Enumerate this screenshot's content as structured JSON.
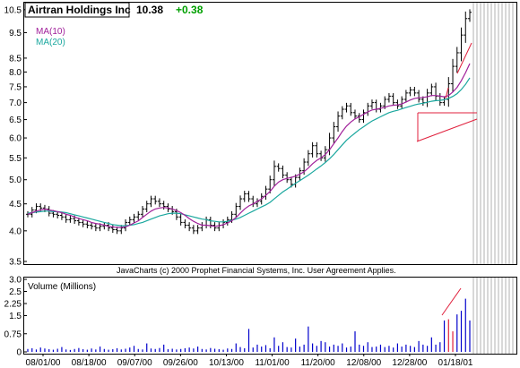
{
  "header": {
    "title": "Airtran Holdings Inc",
    "last": "10.38",
    "change": "+0.38",
    "change_color": "#00a000"
  },
  "legend": {
    "ma10": "MA(10)",
    "ma20": "MA(20)",
    "ma10_color": "#a0209a",
    "ma20_color": "#1aa79e"
  },
  "copyright": "JavaCharts (c) 2000 Prophet Financial Systems, Inc.  User Agreement Applies.",
  "volume_label": "Volume (Millions)",
  "colors": {
    "bars": "#000000",
    "volume": "#0000cc",
    "annotation": "#e0203c",
    "tick_text": "#cc0000"
  },
  "chart_data": [
    {
      "type": "ohlc",
      "title": "Airtran Holdings Inc",
      "price_ticks": [
        "10.5",
        "9.5",
        "8.5",
        "8.0",
        "7.5",
        "7.0",
        "6.5",
        "6.0",
        "5.5",
        "5.0",
        "4.5",
        "4.0",
        "3.5"
      ],
      "date_labels": [
        "08/01/00",
        "08/18/00",
        "09/07/00",
        "09/26/00",
        "10/13/00",
        "11/01/00",
        "11/20/00",
        "12/08/00",
        "12/28/00",
        "01/18/01"
      ],
      "ylim": [
        3.5,
        10.7
      ],
      "scale": "log",
      "close": [
        4.3,
        4.38,
        4.45,
        4.42,
        4.4,
        4.32,
        4.3,
        4.28,
        4.25,
        4.2,
        4.22,
        4.18,
        4.15,
        4.12,
        4.1,
        4.08,
        4.05,
        4.08,
        4.1,
        4.05,
        4.02,
        4.0,
        4.05,
        4.15,
        4.2,
        4.25,
        4.3,
        4.4,
        4.5,
        4.6,
        4.55,
        4.5,
        4.45,
        4.4,
        4.35,
        4.25,
        4.15,
        4.1,
        4.05,
        4.0,
        4.05,
        4.1,
        4.2,
        4.1,
        4.05,
        4.1,
        4.15,
        4.2,
        4.3,
        4.45,
        4.6,
        4.7,
        4.6,
        4.5,
        4.55,
        4.65,
        4.8,
        5.0,
        5.3,
        5.25,
        5.1,
        5.0,
        4.9,
        5.05,
        5.2,
        5.4,
        5.6,
        5.8,
        5.6,
        5.5,
        5.7,
        6.0,
        6.3,
        6.6,
        6.8,
        6.9,
        6.7,
        6.6,
        6.5,
        6.7,
        6.9,
        7.0,
        6.8,
        6.9,
        7.1,
        7.2,
        7.0,
        6.9,
        7.1,
        7.3,
        7.4,
        7.3,
        7.1,
        7.0,
        7.3,
        7.5,
        7.2,
        7.0,
        7.1,
        7.6,
        8.2,
        8.7,
        9.4,
        10.1,
        10.38
      ],
      "ma10": [
        4.3,
        4.33,
        4.36,
        4.38,
        4.4,
        4.38,
        4.37,
        4.35,
        4.33,
        4.3,
        4.28,
        4.25,
        4.22,
        4.2,
        4.18,
        4.15,
        4.13,
        4.12,
        4.1,
        4.08,
        4.07,
        4.06,
        4.06,
        4.07,
        4.1,
        4.14,
        4.18,
        4.24,
        4.3,
        4.36,
        4.4,
        4.42,
        4.43,
        4.42,
        4.4,
        4.37,
        4.33,
        4.28,
        4.22,
        4.17,
        4.13,
        4.1,
        4.1,
        4.09,
        4.08,
        4.09,
        4.11,
        4.14,
        4.18,
        4.24,
        4.32,
        4.4,
        4.46,
        4.5,
        4.55,
        4.6,
        4.67,
        4.75,
        4.86,
        4.95,
        5.0,
        5.03,
        5.05,
        5.08,
        5.12,
        5.18,
        5.26,
        5.36,
        5.44,
        5.5,
        5.58,
        5.7,
        5.85,
        6.0,
        6.17,
        6.32,
        6.43,
        6.52,
        6.58,
        6.65,
        6.72,
        6.78,
        6.8,
        6.83,
        6.86,
        6.9,
        6.92,
        6.93,
        6.96,
        7.02,
        7.08,
        7.13,
        7.15,
        7.16,
        7.18,
        7.22,
        7.22,
        7.2,
        7.18,
        7.22,
        7.33,
        7.48,
        7.7,
        7.98,
        8.3
      ],
      "ma20": [
        4.32,
        4.33,
        4.34,
        4.35,
        4.36,
        4.36,
        4.35,
        4.35,
        4.34,
        4.33,
        4.31,
        4.29,
        4.27,
        4.25,
        4.23,
        4.21,
        4.19,
        4.17,
        4.15,
        4.13,
        4.11,
        4.1,
        4.09,
        4.09,
        4.1,
        4.11,
        4.13,
        4.15,
        4.18,
        4.21,
        4.24,
        4.27,
        4.29,
        4.31,
        4.32,
        4.32,
        4.31,
        4.29,
        4.27,
        4.25,
        4.23,
        4.21,
        4.2,
        4.18,
        4.17,
        4.16,
        4.16,
        4.17,
        4.19,
        4.21,
        4.24,
        4.28,
        4.32,
        4.36,
        4.4,
        4.44,
        4.48,
        4.53,
        4.6,
        4.67,
        4.74,
        4.8,
        4.86,
        4.92,
        4.98,
        5.04,
        5.1,
        5.17,
        5.24,
        5.31,
        5.39,
        5.48,
        5.58,
        5.7,
        5.82,
        5.94,
        6.04,
        6.13,
        6.22,
        6.3,
        6.38,
        6.46,
        6.52,
        6.58,
        6.64,
        6.7,
        6.74,
        6.77,
        6.81,
        6.85,
        6.89,
        6.93,
        6.96,
        6.98,
        7.01,
        7.04,
        7.06,
        7.07,
        7.09,
        7.13,
        7.19,
        7.28,
        7.41,
        7.58,
        7.8
      ]
    },
    {
      "type": "bar",
      "title": "Volume (Millions)",
      "ylabel": "Volume (Millions)",
      "y_ticks": [
        "3.0",
        "2.5",
        "2.25",
        "1.5",
        "0.75",
        "0"
      ],
      "ylim": [
        0,
        3.0
      ],
      "values": [
        0.12,
        0.15,
        0.1,
        0.18,
        0.14,
        0.11,
        0.09,
        0.13,
        0.2,
        0.1,
        0.08,
        0.12,
        0.16,
        0.11,
        0.09,
        0.14,
        0.1,
        0.22,
        0.12,
        0.09,
        0.11,
        0.15,
        0.1,
        0.13,
        0.18,
        0.25,
        0.12,
        0.1,
        0.35,
        0.14,
        0.12,
        0.16,
        0.3,
        0.11,
        0.13,
        0.1,
        0.12,
        0.15,
        0.18,
        0.14,
        0.22,
        0.12,
        0.1,
        0.16,
        0.13,
        0.11,
        0.09,
        0.14,
        0.12,
        0.35,
        0.2,
        0.15,
        0.95,
        0.18,
        0.3,
        0.22,
        0.28,
        0.15,
        0.6,
        0.25,
        0.4,
        0.2,
        0.18,
        0.55,
        0.22,
        0.3,
        1.05,
        0.35,
        0.25,
        0.45,
        0.4,
        0.22,
        0.3,
        0.25,
        0.35,
        0.18,
        0.22,
        0.85,
        0.3,
        0.25,
        0.4,
        0.2,
        0.22,
        0.3,
        0.2,
        0.25,
        0.18,
        0.35,
        0.22,
        0.3,
        0.25,
        0.2,
        0.45,
        0.3,
        0.25,
        0.6,
        0.3,
        0.4,
        1.3,
        1.35,
        0.85,
        1.55,
        1.7,
        2.2,
        1.3
      ]
    }
  ]
}
